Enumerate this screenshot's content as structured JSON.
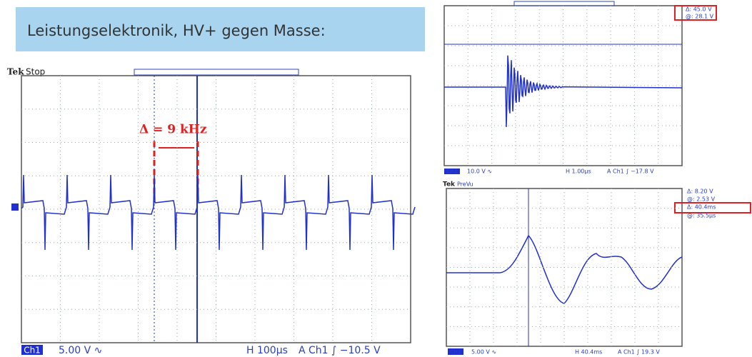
{
  "title": "Leistungselektronik, HV+ gegen Masse:",
  "scope_left": {
    "brand": "Tek",
    "status": "Stop",
    "annotation": "Δ = 9 kHz",
    "channel": "Ch1",
    "scale": "5.00 V ∿",
    "timebase": "H 100µs",
    "trigger": "A  Ch1  ∫  −10.5 V"
  },
  "scope_top_right": {
    "cursor_delta": "Δ:  45.0 V",
    "cursor_at": "@:  28.1 V",
    "channel": "Ch1",
    "scale": "10.0 V ∿",
    "timebase": "H 1.00µs",
    "trigger": "A  Ch1  ∫  −17.8 V"
  },
  "scope_bottom_right": {
    "brand": "Tek",
    "status": "PreVu",
    "cursor_delta_v": "Δ:  8.20 V",
    "cursor_at_v": "@:  2.53 V",
    "cursor_delta_t": "Δ:  40.4ms",
    "cursor_at_t": "@:  35.5µs",
    "channel": "Ch1",
    "scale": "5.00 V ∿",
    "timebase": "H 40.4ms",
    "trigger": "A  Ch1  ∫  19.3 V"
  }
}
